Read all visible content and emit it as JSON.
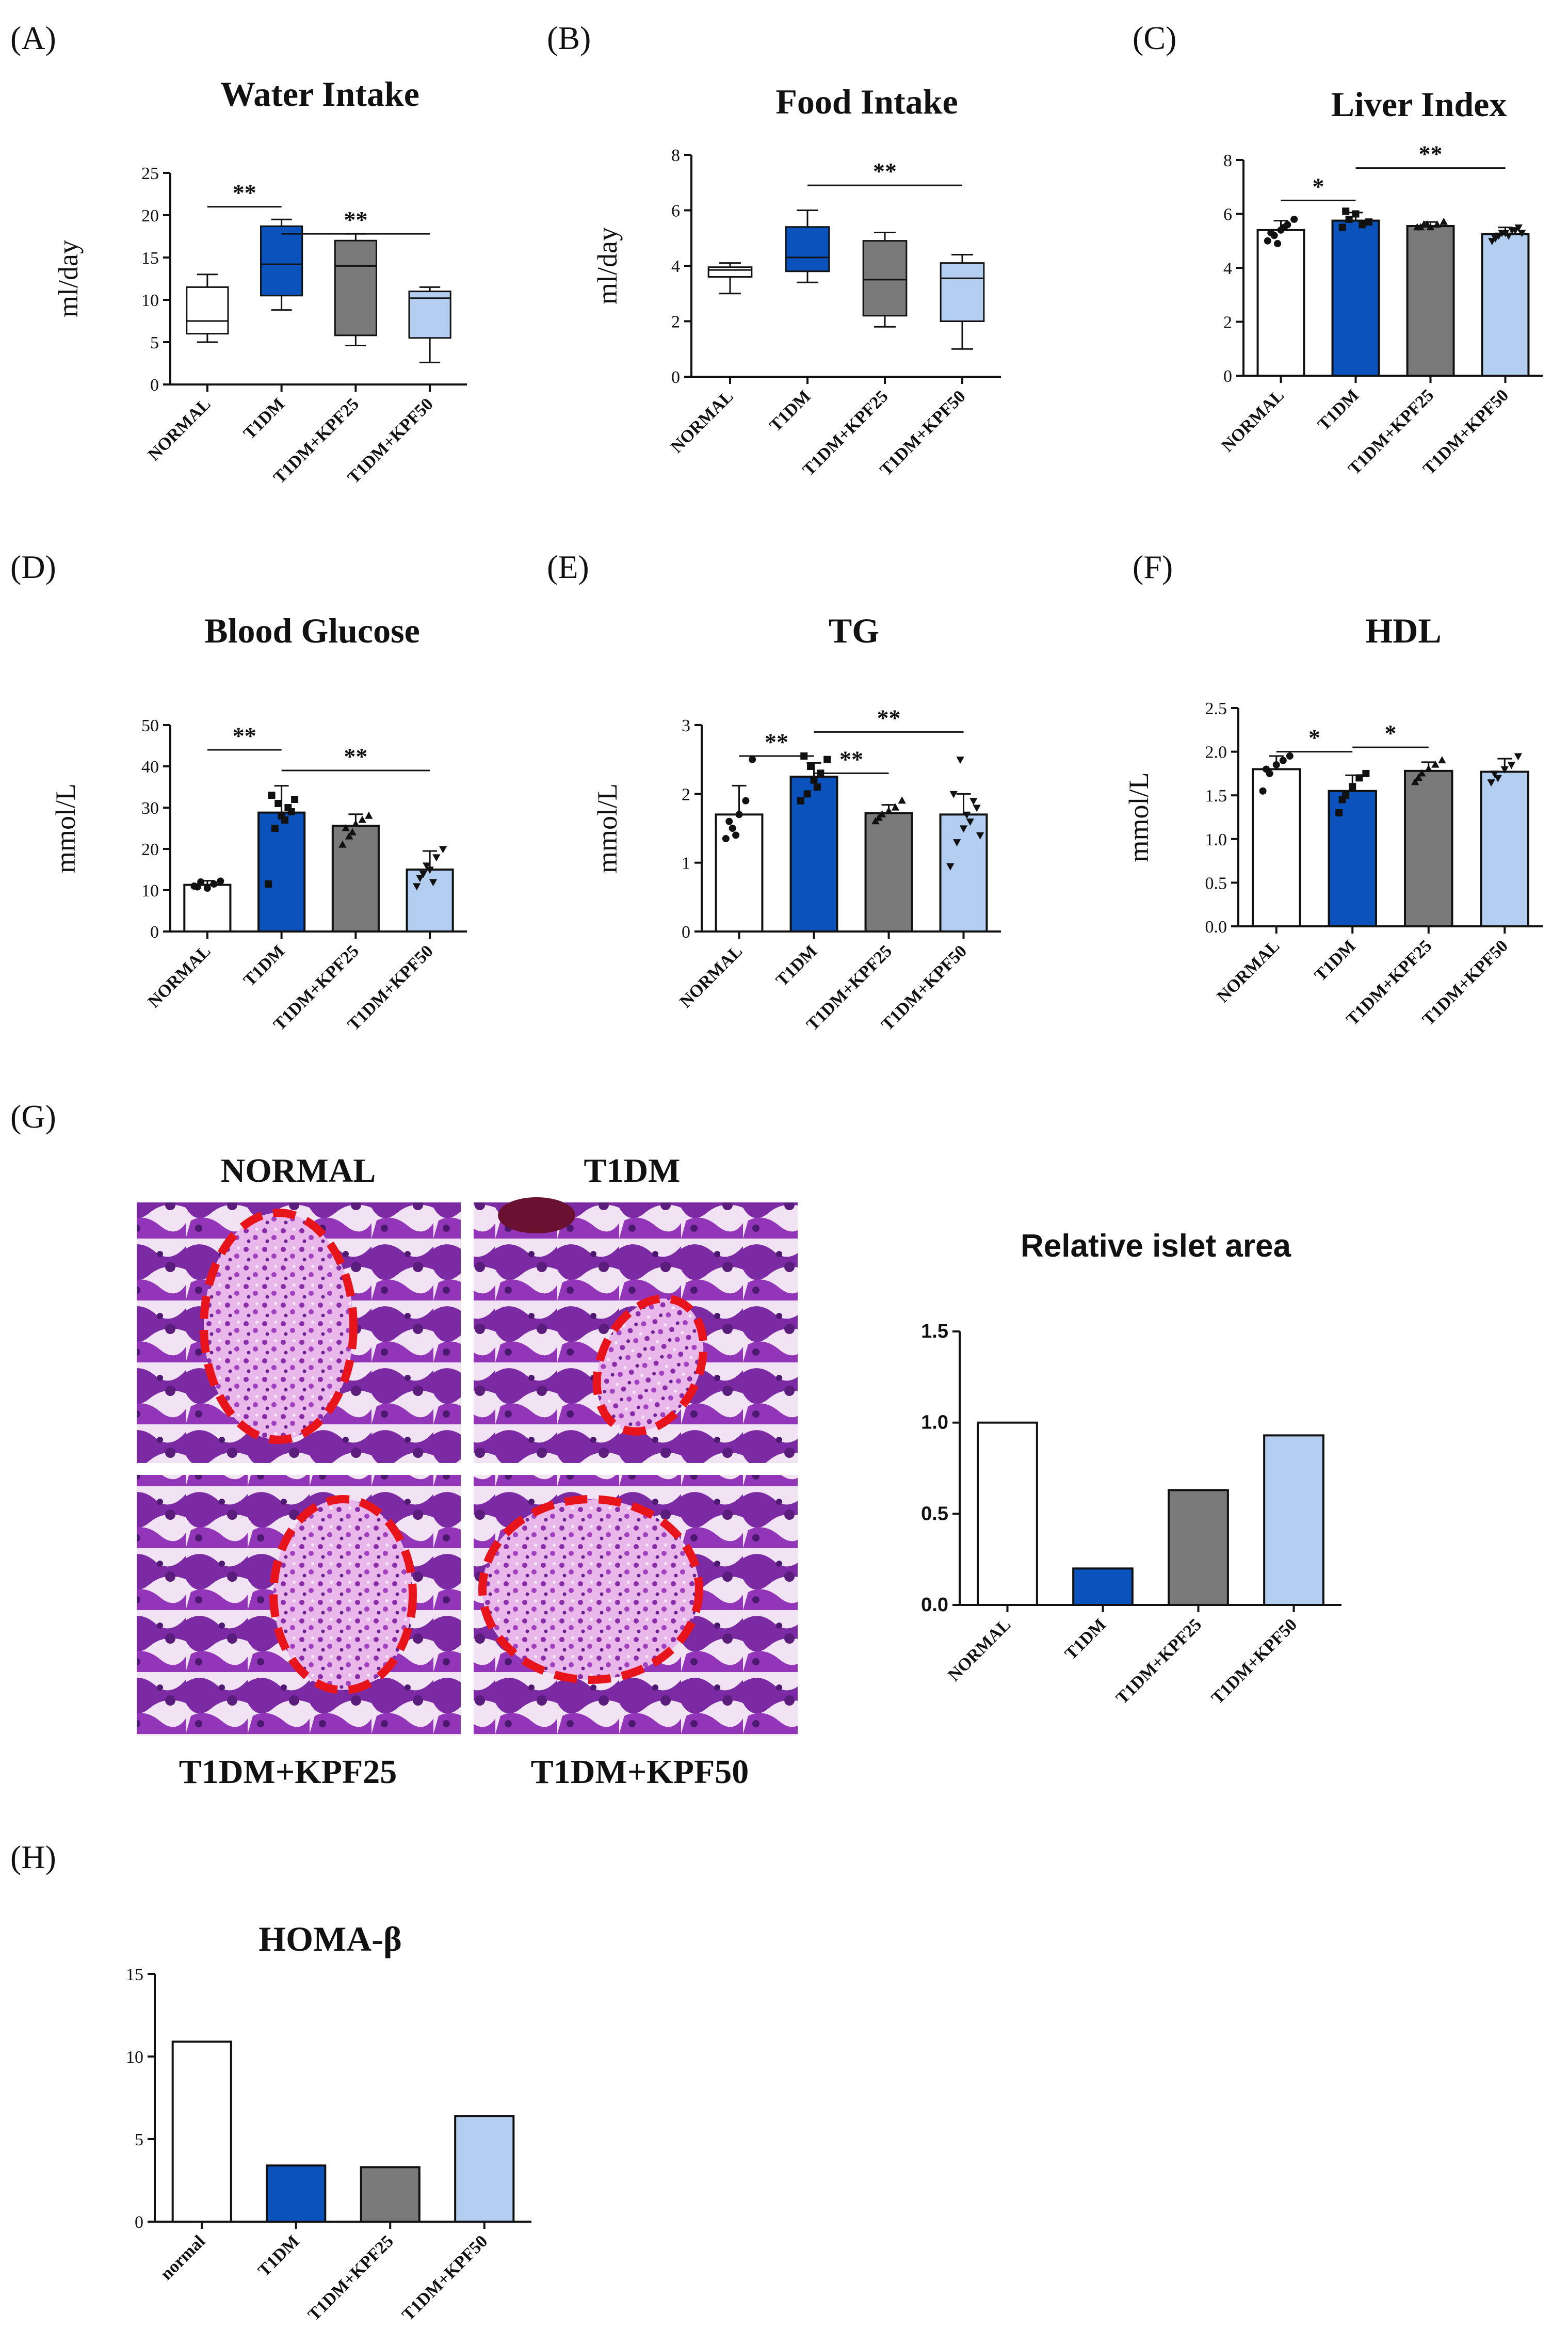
{
  "panel_letters": [
    "(A)",
    "(B)",
    "(C)",
    "(D)",
    "(E)",
    "(F)",
    "(G)",
    "(H)"
  ],
  "colors": {
    "normal": "#ffffff",
    "t1dm": "#0b52bd",
    "kpf25": "#7a7a7a",
    "kpf50": "#b3cef0"
  },
  "chart_data": [
    {
      "id": "A",
      "type": "box",
      "title": "Water Intake",
      "ylabel": "ml/day",
      "ylim": [
        0,
        25
      ],
      "yticks": [
        0,
        5,
        10,
        15,
        20,
        25
      ],
      "categories": [
        "NORMAL",
        "T1DM",
        "T1DM+KPF25",
        "T1DM+KPF50"
      ],
      "boxes": [
        {
          "min": 5,
          "q1": 6,
          "median": 7.5,
          "q3": 11.5,
          "max": 13
        },
        {
          "min": 8.8,
          "q1": 10.5,
          "median": 14.2,
          "q3": 18.7,
          "max": 19.5
        },
        {
          "min": 4.6,
          "q1": 5.8,
          "median": 14,
          "q3": 17,
          "max": 17.8
        },
        {
          "min": 2.6,
          "q1": 5.5,
          "median": 10.2,
          "q3": 11,
          "max": 11.5
        }
      ],
      "significance": [
        {
          "from": 0,
          "to": 1,
          "y": 21,
          "label": "**"
        },
        {
          "from": 1,
          "to": 3,
          "y": 17.8,
          "label": "**"
        }
      ]
    },
    {
      "id": "B",
      "type": "box",
      "title": "Food Intake",
      "ylabel": "ml/day",
      "ylim": [
        0,
        8
      ],
      "yticks": [
        0,
        2,
        4,
        6,
        8
      ],
      "categories": [
        "NORMAL",
        "T1DM",
        "T1DM+KPF25",
        "T1DM+KPF50"
      ],
      "boxes": [
        {
          "min": 3.0,
          "q1": 3.6,
          "median": 3.85,
          "q3": 3.95,
          "max": 4.1
        },
        {
          "min": 3.4,
          "q1": 3.8,
          "median": 4.3,
          "q3": 5.4,
          "max": 6.0
        },
        {
          "min": 1.8,
          "q1": 2.2,
          "median": 3.5,
          "q3": 4.9,
          "max": 5.2
        },
        {
          "min": 1.0,
          "q1": 2.0,
          "median": 3.55,
          "q3": 4.1,
          "max": 4.4
        }
      ],
      "significance": [
        {
          "from": 1,
          "to": 3,
          "y": 6.9,
          "label": "**"
        }
      ]
    },
    {
      "id": "C",
      "type": "bar",
      "title": "Liver Index",
      "ylabel": "",
      "ylim": [
        0,
        8
      ],
      "yticks": [
        0,
        2,
        4,
        6,
        8
      ],
      "categories": [
        "NORMAL",
        "T1DM",
        "T1DM+KPF25",
        "T1DM+KPF50"
      ],
      "values": [
        5.4,
        5.75,
        5.55,
        5.25
      ],
      "errors": [
        0.35,
        0.3,
        0.15,
        0.25
      ],
      "markers": [
        "circle",
        "square",
        "triangle",
        "triangle-down"
      ],
      "points": [
        [
          5.0,
          5.2,
          5.4,
          5.6,
          5.8,
          5.3,
          4.9,
          5.5
        ],
        [
          5.5,
          5.8,
          6.0,
          5.6,
          5.7,
          6.1
        ],
        [
          5.5,
          5.6,
          5.5,
          5.6,
          5.7,
          5.5,
          5.6
        ],
        [
          5.0,
          5.2,
          5.3,
          5.4,
          5.5,
          5.1,
          5.3,
          5.2,
          5.4,
          5.3
        ]
      ],
      "significance": [
        {
          "from": 0,
          "to": 1,
          "y": 6.5,
          "label": "*"
        },
        {
          "from": 1,
          "to": 3,
          "y": 7.7,
          "label": "**"
        }
      ]
    },
    {
      "id": "D",
      "type": "bar",
      "title": "Blood Glucose",
      "ylabel": "mmol/L",
      "ylim": [
        0,
        50
      ],
      "yticks": [
        0,
        10,
        20,
        30,
        40,
        50
      ],
      "categories": [
        "NORMAL",
        "T1DM",
        "T1DM+KPF25",
        "T1DM+KPF50"
      ],
      "values": [
        11.3,
        28.8,
        25.6,
        15.0
      ],
      "errors": [
        1.0,
        6.5,
        2.8,
        4.5
      ],
      "markers": [
        "circle",
        "square",
        "triangle",
        "triangle-down"
      ],
      "points": [
        [
          11,
          12,
          10.5,
          11.5,
          12.2,
          10.8
        ],
        [
          11.5,
          25,
          28,
          30,
          32,
          33,
          31,
          27,
          29
        ],
        [
          21,
          23,
          26,
          27,
          28,
          25,
          24
        ],
        [
          11,
          14,
          15,
          18,
          20,
          13,
          16,
          12
        ]
      ],
      "significance": [
        {
          "from": 0,
          "to": 1,
          "y": 44,
          "label": "**"
        },
        {
          "from": 1,
          "to": 3,
          "y": 39,
          "label": "**"
        }
      ]
    },
    {
      "id": "E",
      "type": "bar",
      "title": "TG",
      "ylabel": "mmol/L",
      "ylim": [
        0,
        3
      ],
      "yticks": [
        0,
        1,
        2,
        3
      ],
      "categories": [
        "NORMAL",
        "T1DM",
        "T1DM+KPF25",
        "T1DM+KPF50"
      ],
      "values": [
        1.7,
        2.25,
        1.72,
        1.7
      ],
      "errors": [
        0.42,
        0.2,
        0.12,
        0.3
      ],
      "markers": [
        "circle",
        "square",
        "triangle",
        "triangle-down"
      ],
      "points": [
        [
          1.35,
          1.5,
          1.7,
          1.9,
          2.5,
          1.6,
          1.4
        ],
        [
          1.9,
          2.0,
          2.2,
          2.3,
          2.5,
          2.55,
          2.4,
          2.1
        ],
        [
          1.6,
          1.7,
          1.75,
          1.8,
          1.9,
          1.65
        ],
        [
          0.95,
          1.3,
          1.5,
          1.6,
          1.8,
          2.0,
          2.5,
          1.7,
          1.9,
          1.4
        ]
      ],
      "significance": [
        {
          "from": 0,
          "to": 1,
          "y": 2.55,
          "label": "**"
        },
        {
          "from": 1,
          "to": 2,
          "y": 2.3,
          "label": "**"
        },
        {
          "from": 1,
          "to": 3,
          "y": 2.9,
          "label": "**"
        }
      ]
    },
    {
      "id": "F",
      "type": "bar",
      "title": "HDL",
      "ylabel": "mmol/L",
      "ylim": [
        0,
        2.5
      ],
      "yticks": [
        0.0,
        0.5,
        1.0,
        1.5,
        2.0,
        2.5
      ],
      "ytick_labels": [
        "0.0",
        "0.5",
        "1.0",
        "1.5",
        "2.0",
        "2.5"
      ],
      "categories": [
        "NORMAL",
        "T1DM",
        "T1DM+KPF25",
        "T1DM+KPF50"
      ],
      "values": [
        1.8,
        1.55,
        1.78,
        1.77
      ],
      "errors": [
        0.15,
        0.18,
        0.1,
        0.15
      ],
      "markers": [
        "circle",
        "square",
        "triangle",
        "triangle-down"
      ],
      "points": [
        [
          1.55,
          1.75,
          1.85,
          1.9,
          1.95,
          1.8
        ],
        [
          1.3,
          1.5,
          1.6,
          1.7,
          1.75,
          1.45
        ],
        [
          1.65,
          1.75,
          1.8,
          1.85,
          1.9,
          1.7
        ],
        [
          1.65,
          1.7,
          1.8,
          1.85,
          1.95,
          1.75
        ]
      ],
      "significance": [
        {
          "from": 0,
          "to": 1,
          "y": 2.0,
          "label": "*"
        },
        {
          "from": 1,
          "to": 2,
          "y": 2.05,
          "label": "*"
        }
      ]
    },
    {
      "id": "G-chart",
      "type": "bar",
      "title": "Relative islet area",
      "ylabel": "",
      "ylim": [
        0,
        1.5
      ],
      "yticks": [
        0.0,
        0.5,
        1.0,
        1.5
      ],
      "ytick_labels": [
        "0.0",
        "0.5",
        "1.0",
        "1.5"
      ],
      "categories": [
        "NORMAL",
        "T1DM",
        "T1DM+KPF25",
        "T1DM+KPF50"
      ],
      "values": [
        1.0,
        0.2,
        0.63,
        0.93
      ]
    },
    {
      "id": "H",
      "type": "bar",
      "title": "HOMA-β",
      "ylabel": "",
      "ylim": [
        0,
        15
      ],
      "yticks": [
        0,
        5,
        10,
        15
      ],
      "categories": [
        "normal",
        "T1DM",
        "T1DM+KPF25",
        "T1DM+KPF50"
      ],
      "values": [
        10.9,
        3.4,
        3.3,
        6.4
      ]
    }
  ],
  "histology": {
    "labels": [
      "NORMAL",
      "T1DM",
      "T1DM+KPF25",
      "T1DM+KPF50"
    ]
  }
}
